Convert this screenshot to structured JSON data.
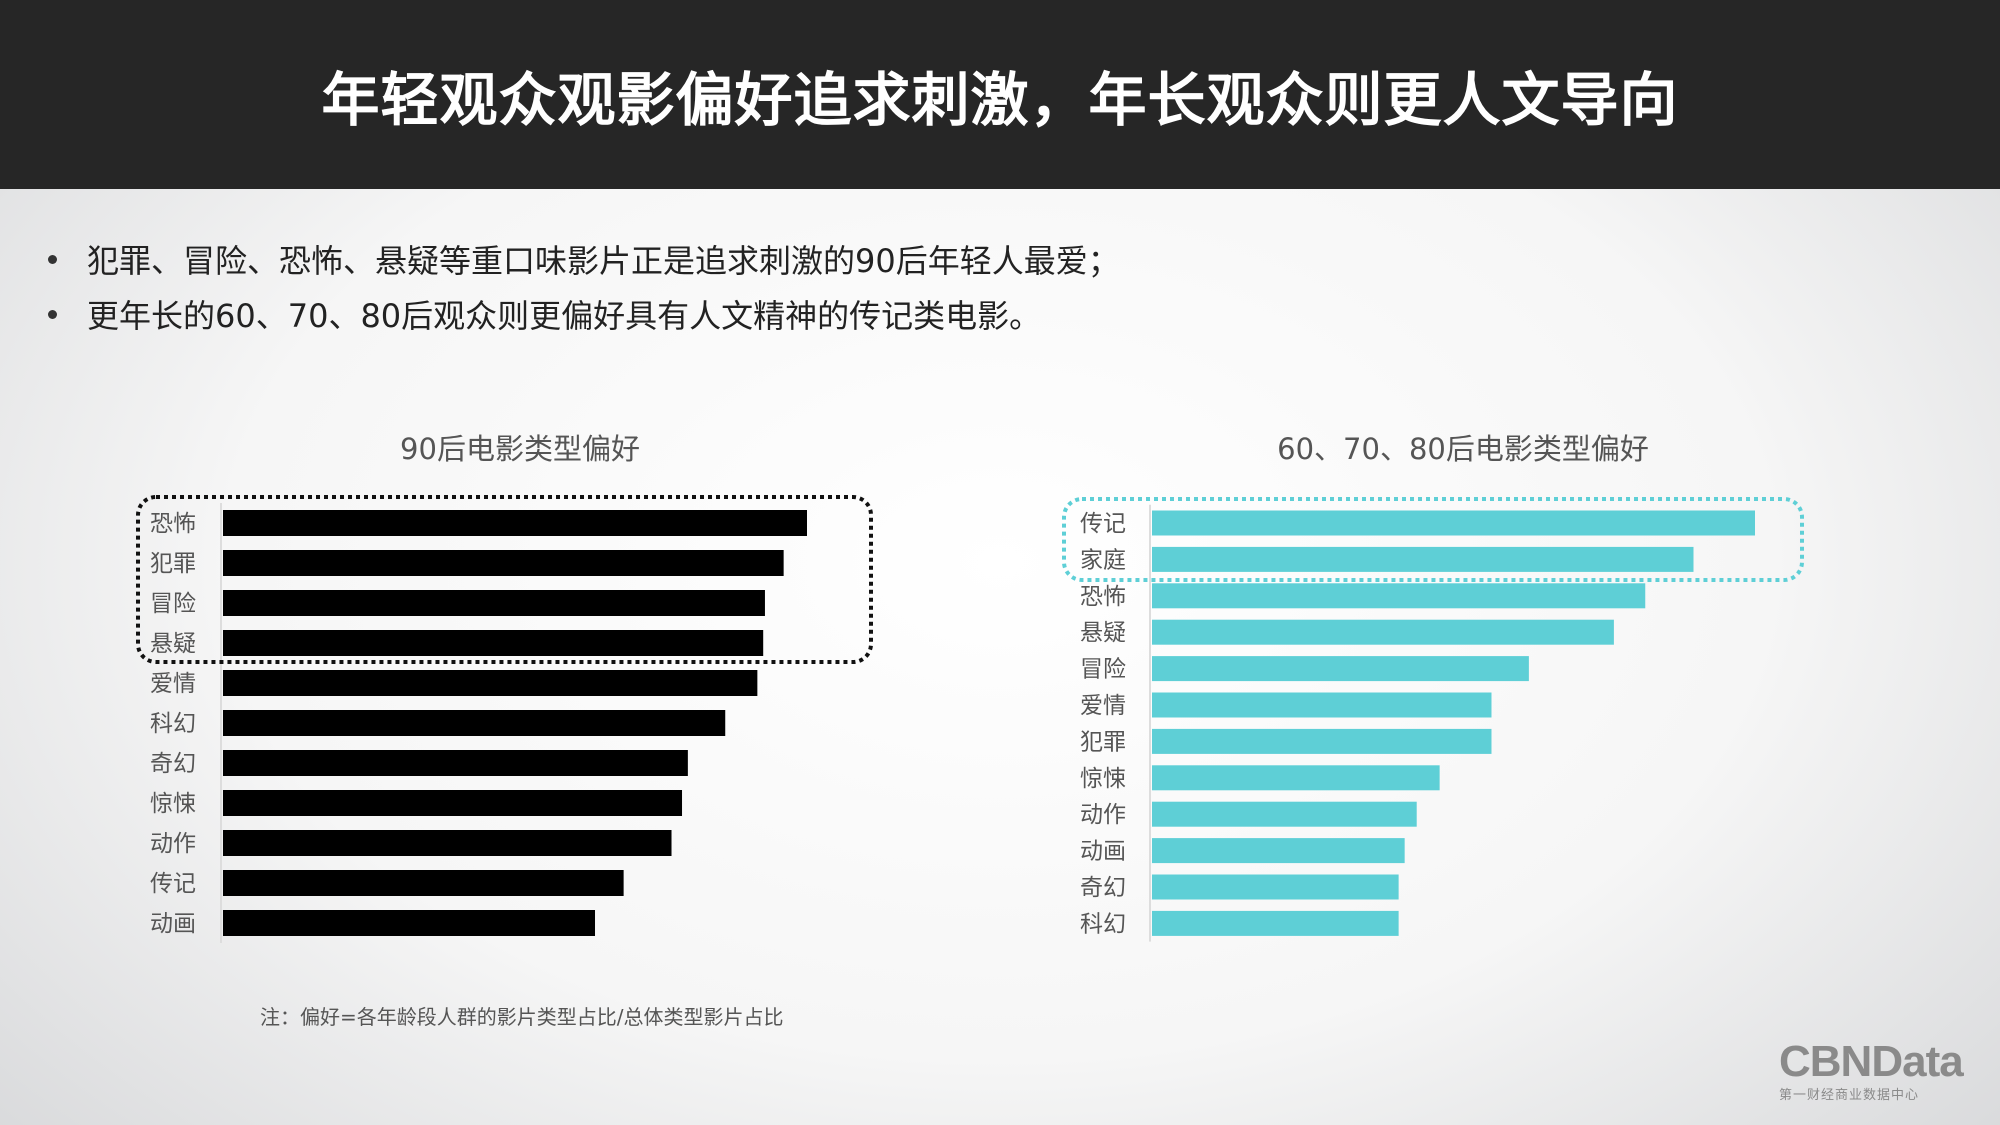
{
  "header": {
    "title": "年轻观众观影偏好追求刺激，年长观众则更人文导向"
  },
  "bullets": [
    "犯罪、冒险、恐怖、悬疑等重口味影片正是追求刺激的90后年轻人最爱；",
    "更年长的60、70、80后观众则更偏好具有人文精神的传记类电影。"
  ],
  "note": "注：偏好=各年龄段人群的影片类型占比/总体类型影片占比",
  "logo": {
    "name": "CBNData",
    "subtitle": "第一财经商业数据中心"
  },
  "colors": {
    "left_bar": "#000000",
    "right_bar": "#5ecfd6",
    "header_bg": "#262626"
  },
  "chart_data": [
    {
      "type": "bar",
      "orientation": "horizontal",
      "title": "90后电影类型偏好",
      "categories": [
        "恐怖",
        "犯罪",
        "冒险",
        "悬疑",
        "爱情",
        "科幻",
        "奇幻",
        "惊悚",
        "动作",
        "传记",
        "动画"
      ],
      "values": [
        100,
        96,
        92.8,
        92.5,
        91.5,
        86,
        79.6,
        78.6,
        76.8,
        68.6,
        63.7
      ],
      "value_note": "relative bar length (% of max), no axis shown",
      "highlighted": [
        "恐怖",
        "犯罪",
        "冒险",
        "悬疑"
      ],
      "xlabel": "",
      "ylabel": "",
      "xlim": [
        0,
        100
      ]
    },
    {
      "type": "bar",
      "orientation": "horizontal",
      "title": "60、70、80后电影类型偏好",
      "categories": [
        "传记",
        "家庭",
        "恐怖",
        "悬疑",
        "冒险",
        "爱情",
        "犯罪",
        "惊悚",
        "动作",
        "动画",
        "奇幻",
        "科幻"
      ],
      "values": [
        100,
        89.8,
        81.8,
        76.6,
        62.5,
        56.3,
        56.3,
        47.7,
        43.9,
        41.9,
        40.9,
        40.9
      ],
      "value_note": "relative bar length (% of max), no axis shown",
      "highlighted": [
        "传记",
        "家庭"
      ],
      "xlabel": "",
      "ylabel": "",
      "xlim": [
        0,
        100
      ]
    }
  ]
}
